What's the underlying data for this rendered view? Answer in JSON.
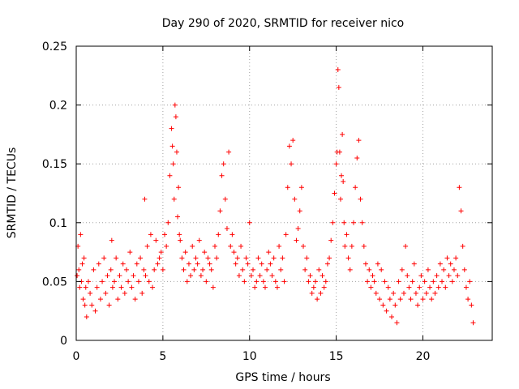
{
  "chart_data": {
    "type": "scatter",
    "title": "Day 290 of 2020, SRMTID for receiver nico",
    "xlabel": "GPS time / hours",
    "ylabel": "SRMTID / TECUs",
    "xlim": [
      0,
      24
    ],
    "ylim": [
      0,
      0.25
    ],
    "xticks": [
      0,
      5,
      10,
      15,
      20
    ],
    "yticks": [
      0,
      0.05,
      0.1,
      0.15,
      0.2,
      0.25
    ],
    "xtick_labels": [
      "0",
      "5",
      "10",
      "15",
      "20"
    ],
    "ytick_labels": [
      "0",
      "0.05",
      "0.1",
      "0.15",
      "0.2",
      "0.25"
    ],
    "grid": true,
    "marker": "plus",
    "series": [
      {
        "color": "#ff0000",
        "x": [
          0.05,
          0.1,
          0.15,
          0.2,
          0.25,
          0.3,
          0.35,
          0.4,
          0.45,
          0.5,
          0.55,
          0.6,
          0.7,
          0.8,
          0.9,
          1.0,
          1.1,
          1.2,
          1.3,
          1.4,
          1.5,
          1.6,
          1.7,
          1.8,
          1.9,
          2.0,
          2.05,
          2.1,
          2.2,
          2.3,
          2.4,
          2.5,
          2.6,
          2.7,
          2.8,
          2.9,
          3.0,
          3.1,
          3.2,
          3.3,
          3.4,
          3.5,
          3.6,
          3.7,
          3.8,
          3.9,
          3.95,
          4.0,
          4.1,
          4.2,
          4.3,
          4.4,
          4.5,
          4.6,
          4.7,
          4.8,
          4.9,
          5.0,
          5.1,
          5.2,
          5.3,
          5.4,
          5.5,
          5.55,
          5.6,
          5.65,
          5.7,
          5.75,
          5.8,
          5.85,
          5.9,
          5.95,
          6.0,
          6.1,
          6.2,
          6.3,
          6.4,
          6.5,
          6.6,
          6.7,
          6.8,
          6.9,
          7.0,
          7.1,
          7.2,
          7.3,
          7.4,
          7.5,
          7.6,
          7.7,
          7.8,
          7.9,
          8.0,
          8.1,
          8.2,
          8.3,
          8.4,
          8.5,
          8.6,
          8.7,
          8.8,
          8.9,
          9.0,
          9.1,
          9.2,
          9.3,
          9.4,
          9.5,
          9.6,
          9.7,
          9.8,
          9.9,
          10.0,
          10.1,
          10.2,
          10.3,
          10.4,
          10.5,
          10.6,
          10.7,
          10.8,
          10.9,
          11.0,
          11.1,
          11.2,
          11.3,
          11.4,
          11.5,
          11.6,
          11.7,
          11.8,
          11.9,
          12.0,
          12.1,
          12.2,
          12.3,
          12.4,
          12.5,
          12.6,
          12.7,
          12.8,
          12.9,
          13.0,
          13.1,
          13.2,
          13.3,
          13.4,
          13.5,
          13.6,
          13.7,
          13.8,
          13.9,
          14.0,
          14.1,
          14.2,
          14.3,
          14.4,
          14.5,
          14.6,
          14.7,
          14.8,
          14.9,
          15.0,
          15.05,
          15.1,
          15.15,
          15.2,
          15.25,
          15.3,
          15.35,
          15.4,
          15.45,
          15.5,
          15.6,
          15.7,
          15.8,
          15.9,
          16.0,
          16.1,
          16.2,
          16.3,
          16.4,
          16.5,
          16.6,
          16.7,
          16.8,
          16.9,
          17.0,
          17.1,
          17.2,
          17.3,
          17.4,
          17.5,
          17.6,
          17.7,
          17.8,
          17.9,
          18.0,
          18.1,
          18.2,
          18.3,
          18.4,
          18.5,
          18.6,
          18.7,
          18.8,
          18.9,
          19.0,
          19.1,
          19.2,
          19.3,
          19.4,
          19.5,
          19.6,
          19.7,
          19.8,
          19.9,
          20.0,
          20.1,
          20.2,
          20.3,
          20.4,
          20.5,
          20.6,
          20.7,
          20.8,
          20.9,
          21.0,
          21.1,
          21.2,
          21.3,
          21.4,
          21.5,
          21.6,
          21.7,
          21.8,
          21.9,
          22.0,
          22.1,
          22.2,
          22.3,
          22.4,
          22.5,
          22.6,
          22.7,
          22.8,
          22.9
        ],
        "y": [
          0.055,
          0.08,
          0.06,
          0.045,
          0.09,
          0.05,
          0.065,
          0.035,
          0.07,
          0.03,
          0.045,
          0.02,
          0.05,
          0.04,
          0.03,
          0.06,
          0.025,
          0.045,
          0.065,
          0.035,
          0.05,
          0.07,
          0.04,
          0.055,
          0.03,
          0.06,
          0.085,
          0.045,
          0.05,
          0.07,
          0.035,
          0.055,
          0.045,
          0.065,
          0.04,
          0.06,
          0.05,
          0.075,
          0.045,
          0.055,
          0.035,
          0.065,
          0.05,
          0.07,
          0.04,
          0.06,
          0.12,
          0.055,
          0.08,
          0.05,
          0.09,
          0.045,
          0.06,
          0.085,
          0.065,
          0.07,
          0.075,
          0.06,
          0.09,
          0.08,
          0.1,
          0.14,
          0.18,
          0.165,
          0.15,
          0.12,
          0.2,
          0.19,
          0.16,
          0.105,
          0.13,
          0.09,
          0.085,
          0.07,
          0.06,
          0.075,
          0.05,
          0.065,
          0.055,
          0.08,
          0.06,
          0.07,
          0.065,
          0.085,
          0.055,
          0.06,
          0.075,
          0.05,
          0.07,
          0.065,
          0.06,
          0.045,
          0.08,
          0.07,
          0.09,
          0.11,
          0.14,
          0.15,
          0.12,
          0.095,
          0.16,
          0.08,
          0.09,
          0.075,
          0.065,
          0.07,
          0.055,
          0.08,
          0.06,
          0.05,
          0.07,
          0.065,
          0.1,
          0.055,
          0.06,
          0.045,
          0.05,
          0.07,
          0.055,
          0.065,
          0.05,
          0.045,
          0.06,
          0.075,
          0.065,
          0.055,
          0.07,
          0.05,
          0.045,
          0.08,
          0.06,
          0.07,
          0.05,
          0.09,
          0.13,
          0.165,
          0.15,
          0.17,
          0.12,
          0.085,
          0.095,
          0.11,
          0.13,
          0.08,
          0.06,
          0.07,
          0.05,
          0.055,
          0.04,
          0.045,
          0.05,
          0.035,
          0.06,
          0.04,
          0.055,
          0.045,
          0.05,
          0.065,
          0.07,
          0.085,
          0.1,
          0.125,
          0.15,
          0.16,
          0.23,
          0.215,
          0.16,
          0.12,
          0.14,
          0.175,
          0.135,
          0.1,
          0.08,
          0.09,
          0.07,
          0.06,
          0.08,
          0.1,
          0.13,
          0.155,
          0.17,
          0.12,
          0.1,
          0.08,
          0.065,
          0.05,
          0.06,
          0.045,
          0.055,
          0.05,
          0.04,
          0.065,
          0.035,
          0.06,
          0.03,
          0.05,
          0.025,
          0.045,
          0.035,
          0.02,
          0.04,
          0.03,
          0.015,
          0.05,
          0.035,
          0.06,
          0.04,
          0.08,
          0.055,
          0.045,
          0.035,
          0.05,
          0.065,
          0.04,
          0.03,
          0.045,
          0.055,
          0.035,
          0.05,
          0.04,
          0.06,
          0.045,
          0.035,
          0.05,
          0.04,
          0.055,
          0.045,
          0.065,
          0.05,
          0.06,
          0.045,
          0.07,
          0.055,
          0.065,
          0.05,
          0.06,
          0.07,
          0.055,
          0.13,
          0.11,
          0.08,
          0.06,
          0.045,
          0.035,
          0.05,
          0.03,
          0.015
        ]
      }
    ]
  }
}
